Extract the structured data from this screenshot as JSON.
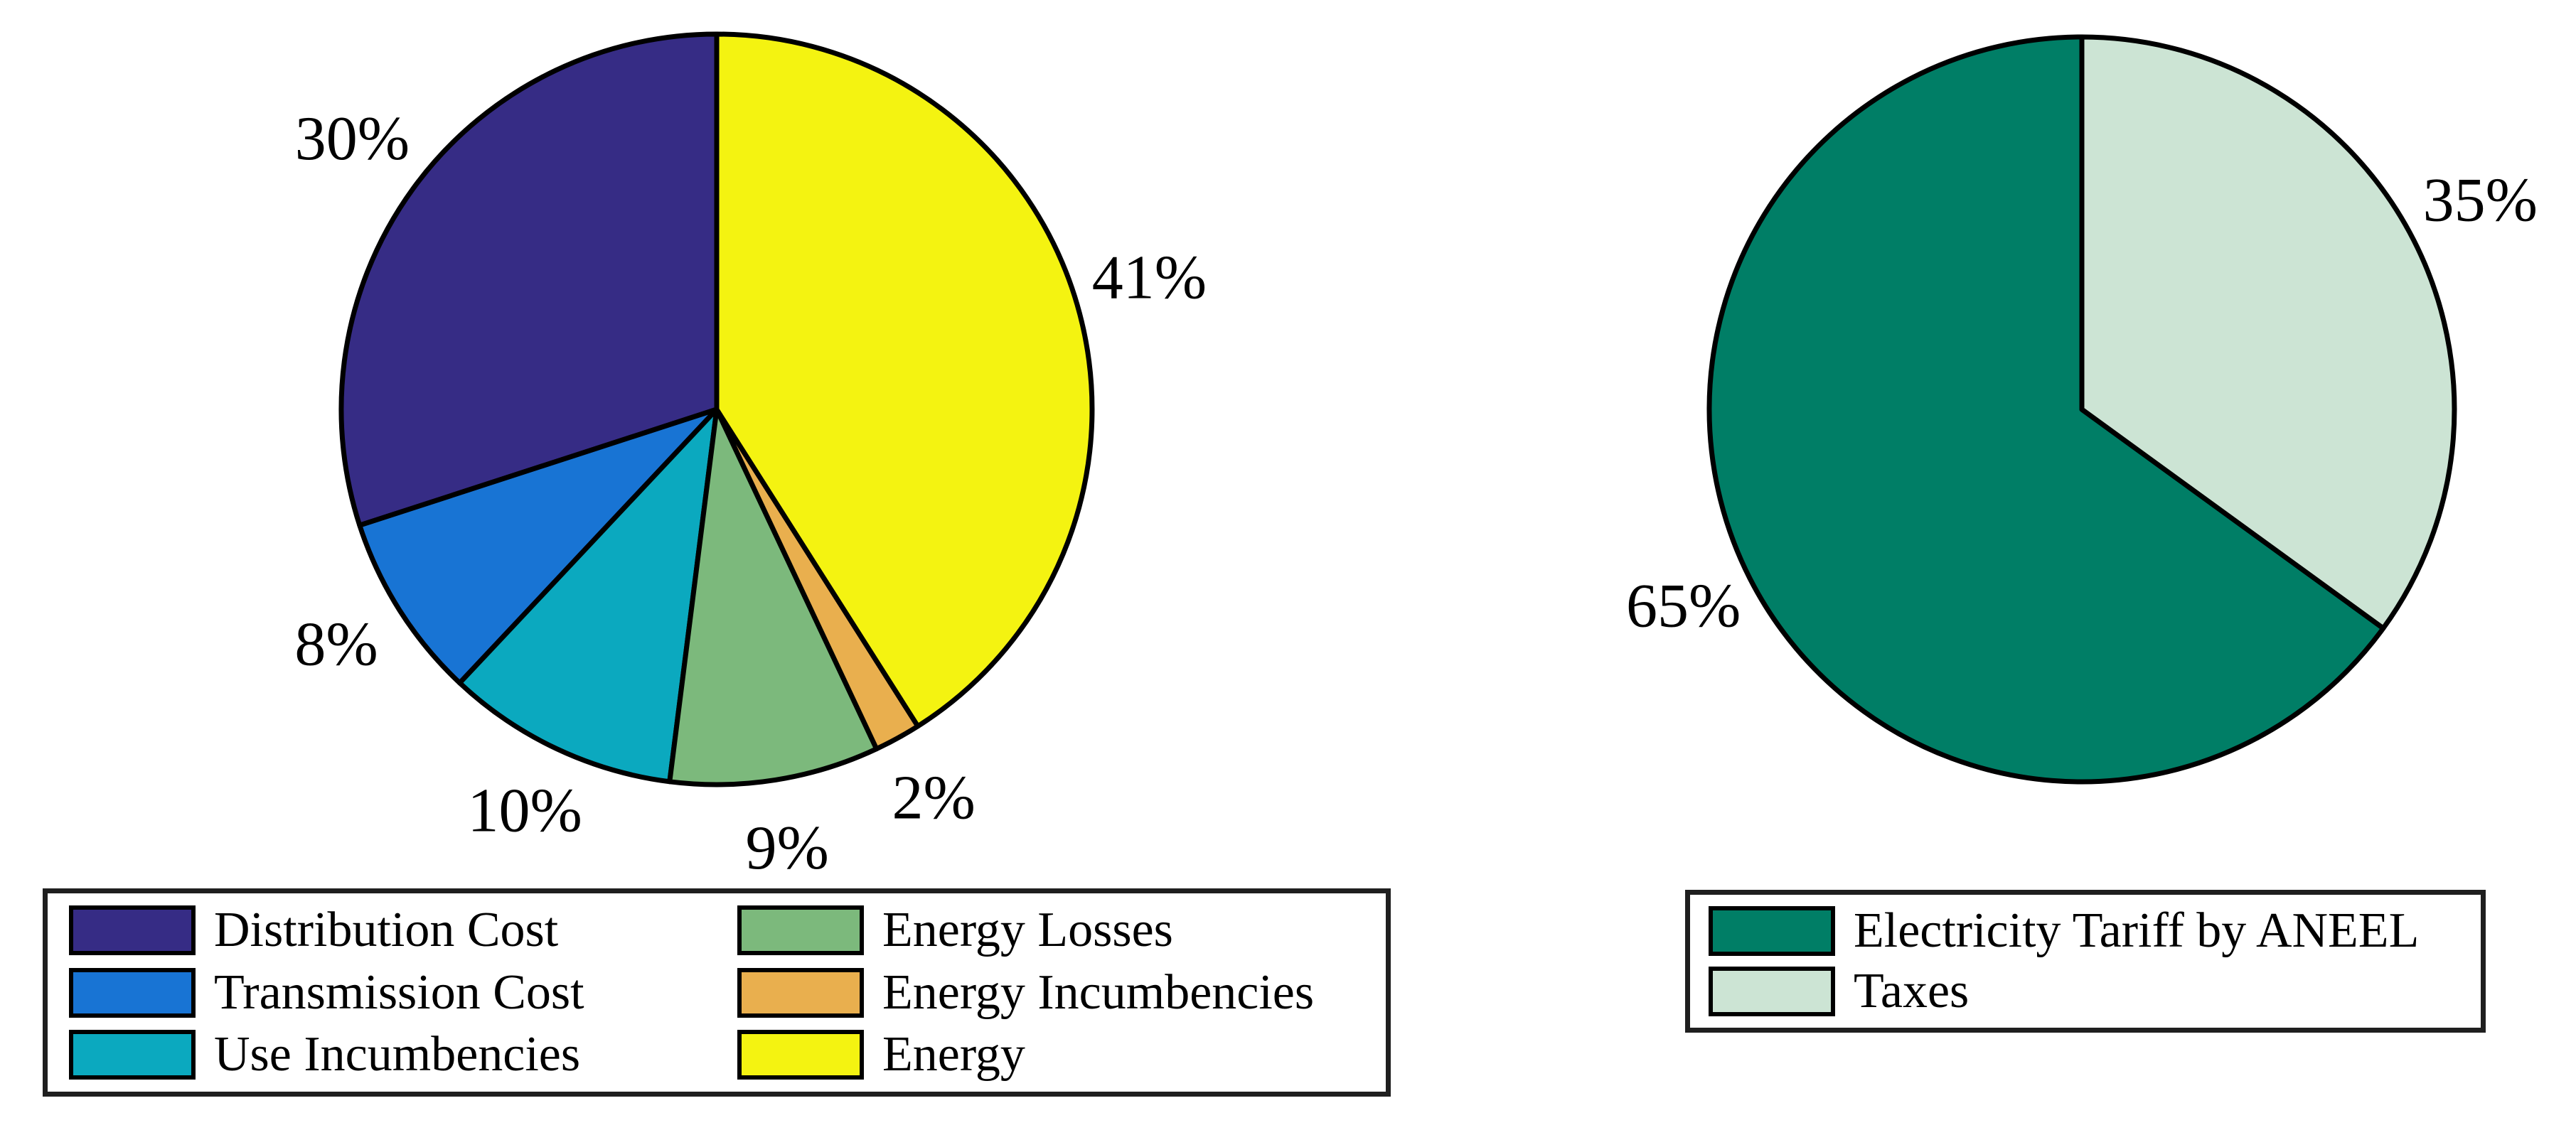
{
  "page": {
    "background": "#FFFFFF"
  },
  "chart_data": [
    {
      "type": "pie",
      "title": "",
      "categories": [
        "Distribution Cost",
        "Transmission Cost",
        "Use Incumbencies",
        "Energy Losses",
        "Energy Incumbencies",
        "Energy"
      ],
      "values": [
        30,
        8,
        10,
        9,
        2,
        41
      ],
      "value_labels": [
        "30%",
        "8%",
        "10%",
        "9%",
        "2%",
        "41%"
      ],
      "colors": [
        "#362C85",
        "#1874D4",
        "#0BA9BF",
        "#7CB97C",
        "#E9AF4E",
        "#F4F311"
      ],
      "start_angle_deg": 90,
      "direction": "counterclockwise",
      "outline_color": "#000000",
      "legend": {
        "position": "bottom",
        "columns": 2,
        "border_color": "#1F1F1F"
      }
    },
    {
      "type": "pie",
      "title": "",
      "categories": [
        "Electricity Tariff by ANEEL",
        "Taxes"
      ],
      "values": [
        65,
        35
      ],
      "value_labels": [
        "65%",
        "35%"
      ],
      "colors": [
        "#007E66",
        "#CCE4D4"
      ],
      "start_angle_deg": 90,
      "direction": "counterclockwise",
      "outline_color": "#000000",
      "legend": {
        "position": "bottom",
        "columns": 1,
        "border_color": "#1F1F1F"
      }
    }
  ]
}
